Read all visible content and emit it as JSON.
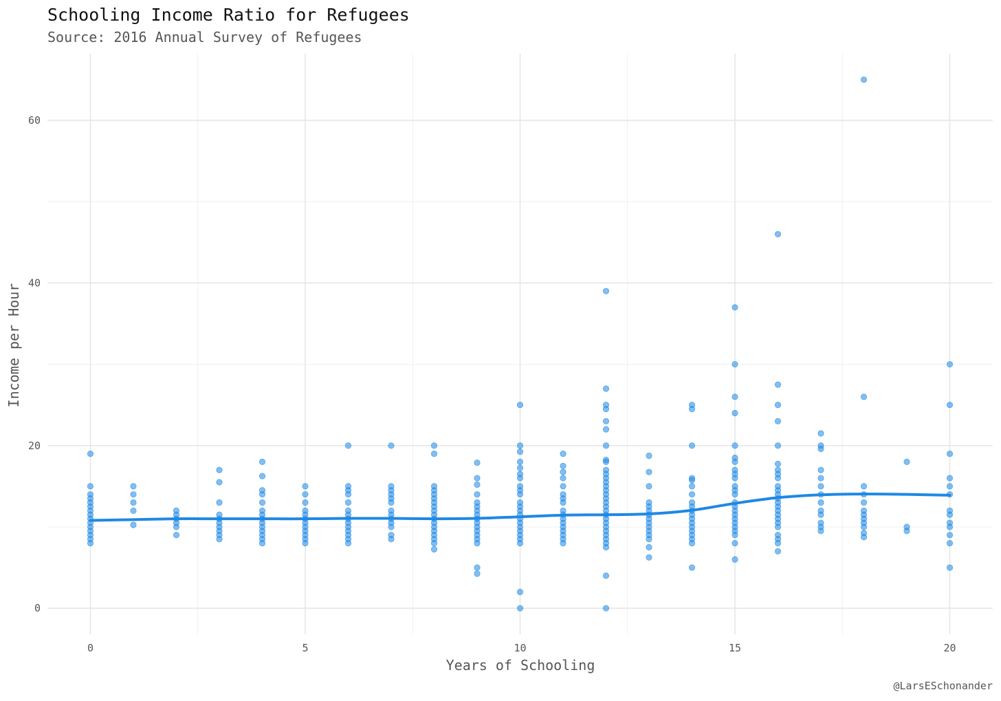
{
  "chart_data": {
    "type": "scatter",
    "title": "Schooling Income Ratio for Refugees",
    "subtitle": "Source: 2016 Annual Survey of Refugees",
    "xlabel": "Years of Schooling",
    "ylabel": "Income per Hour",
    "caption": "@LarsESchonander",
    "xlim": [
      -1,
      21
    ],
    "ylim": [
      -3.2,
      68.2
    ],
    "x_ticks": [
      0,
      5,
      10,
      15,
      20
    ],
    "y_ticks": [
      0,
      20,
      40,
      60
    ],
    "grid": true,
    "point_color": "#1E88E5",
    "line_color": "#1E88E5",
    "series": [
      {
        "type": "scatter",
        "points": [
          [
            0,
            19
          ],
          [
            0,
            15
          ],
          [
            0,
            14
          ],
          [
            0,
            13.5
          ],
          [
            0,
            13
          ],
          [
            0,
            12.5
          ],
          [
            0,
            12
          ],
          [
            0,
            11.5
          ],
          [
            0,
            11
          ],
          [
            0,
            10.5
          ],
          [
            0,
            10
          ],
          [
            0,
            9.5
          ],
          [
            0,
            9
          ],
          [
            0,
            8.5
          ],
          [
            0,
            8
          ],
          [
            1,
            15
          ],
          [
            1,
            14
          ],
          [
            1,
            13
          ],
          [
            1,
            12
          ],
          [
            1,
            10.25
          ],
          [
            2,
            12
          ],
          [
            2,
            11.5
          ],
          [
            2,
            11
          ],
          [
            2,
            10.5
          ],
          [
            2,
            10
          ],
          [
            2,
            9
          ],
          [
            3,
            17
          ],
          [
            3,
            15.5
          ],
          [
            3,
            13
          ],
          [
            3,
            11.5
          ],
          [
            3,
            11
          ],
          [
            3,
            10.5
          ],
          [
            3,
            10
          ],
          [
            3,
            9.5
          ],
          [
            3,
            9
          ],
          [
            3,
            8.5
          ],
          [
            4,
            18
          ],
          [
            4,
            16.25
          ],
          [
            4,
            14.5
          ],
          [
            4,
            14
          ],
          [
            4,
            13
          ],
          [
            4,
            12
          ],
          [
            4,
            11.5
          ],
          [
            4,
            11
          ],
          [
            4,
            10.5
          ],
          [
            4,
            10
          ],
          [
            4,
            9.5
          ],
          [
            4,
            9
          ],
          [
            4,
            8.5
          ],
          [
            4,
            8
          ],
          [
            5,
            15
          ],
          [
            5,
            14
          ],
          [
            5,
            13
          ],
          [
            5,
            12
          ],
          [
            5,
            11.5
          ],
          [
            5,
            11
          ],
          [
            5,
            10.5
          ],
          [
            5,
            10
          ],
          [
            5,
            9.5
          ],
          [
            5,
            9
          ],
          [
            5,
            8.5
          ],
          [
            5,
            8
          ],
          [
            6,
            20
          ],
          [
            6,
            15
          ],
          [
            6,
            14.5
          ],
          [
            6,
            14
          ],
          [
            6,
            13
          ],
          [
            6,
            12
          ],
          [
            6,
            11.5
          ],
          [
            6,
            11
          ],
          [
            6,
            10.5
          ],
          [
            6,
            10
          ],
          [
            6,
            9.5
          ],
          [
            6,
            9
          ],
          [
            6,
            8.5
          ],
          [
            6,
            8
          ],
          [
            7,
            20
          ],
          [
            7,
            15
          ],
          [
            7,
            14.5
          ],
          [
            7,
            14
          ],
          [
            7,
            13.5
          ],
          [
            7,
            13
          ],
          [
            7,
            12
          ],
          [
            7,
            11.5
          ],
          [
            7,
            11
          ],
          [
            7,
            10.5
          ],
          [
            7,
            10
          ],
          [
            7,
            9
          ],
          [
            7,
            8.5
          ],
          [
            8,
            20
          ],
          [
            8,
            19
          ],
          [
            8,
            15
          ],
          [
            8,
            14.5
          ],
          [
            8,
            14
          ],
          [
            8,
            13.5
          ],
          [
            8,
            13
          ],
          [
            8,
            12.5
          ],
          [
            8,
            12
          ],
          [
            8,
            11.5
          ],
          [
            8,
            11
          ],
          [
            8,
            10.5
          ],
          [
            8,
            10
          ],
          [
            8,
            9.5
          ],
          [
            8,
            9
          ],
          [
            8,
            8.5
          ],
          [
            8,
            8
          ],
          [
            8,
            7.25
          ],
          [
            9,
            17.9
          ],
          [
            9,
            16
          ],
          [
            9,
            15.2
          ],
          [
            9,
            14
          ],
          [
            9,
            13
          ],
          [
            9,
            12.5
          ],
          [
            9,
            12
          ],
          [
            9,
            11.5
          ],
          [
            9,
            11
          ],
          [
            9,
            10.5
          ],
          [
            9,
            10
          ],
          [
            9,
            9.5
          ],
          [
            9,
            9
          ],
          [
            9,
            8.5
          ],
          [
            9,
            8
          ],
          [
            9,
            5
          ],
          [
            9,
            4.25
          ],
          [
            10,
            25
          ],
          [
            10,
            20
          ],
          [
            10,
            19.25
          ],
          [
            10,
            18
          ],
          [
            10,
            17.25
          ],
          [
            10,
            16.5
          ],
          [
            10,
            16
          ],
          [
            10,
            15
          ],
          [
            10,
            14.5
          ],
          [
            10,
            14
          ],
          [
            10,
            13
          ],
          [
            10,
            12.5
          ],
          [
            10,
            12
          ],
          [
            10,
            11.5
          ],
          [
            10,
            11
          ],
          [
            10,
            10.5
          ],
          [
            10,
            10
          ],
          [
            10,
            9.5
          ],
          [
            10,
            9
          ],
          [
            10,
            8.5
          ],
          [
            10,
            8
          ],
          [
            10,
            2
          ],
          [
            10,
            0
          ],
          [
            11,
            19
          ],
          [
            11,
            17.5
          ],
          [
            11,
            16.75
          ],
          [
            11,
            16
          ],
          [
            11,
            15
          ],
          [
            11,
            14
          ],
          [
            11,
            13.5
          ],
          [
            11,
            13
          ],
          [
            11,
            12
          ],
          [
            11,
            11.5
          ],
          [
            11,
            11
          ],
          [
            11,
            10.5
          ],
          [
            11,
            10
          ],
          [
            11,
            9.5
          ],
          [
            11,
            9
          ],
          [
            11,
            8.5
          ],
          [
            11,
            8
          ],
          [
            12,
            39
          ],
          [
            12,
            27
          ],
          [
            12,
            25
          ],
          [
            12,
            24.5
          ],
          [
            12,
            23
          ],
          [
            12,
            22
          ],
          [
            12,
            20
          ],
          [
            12,
            18.25
          ],
          [
            12,
            18
          ],
          [
            12,
            17
          ],
          [
            12,
            16.5
          ],
          [
            12,
            16
          ],
          [
            12,
            15.5
          ],
          [
            12,
            15
          ],
          [
            12,
            14.5
          ],
          [
            12,
            14
          ],
          [
            12,
            13.5
          ],
          [
            12,
            13
          ],
          [
            12,
            12.5
          ],
          [
            12,
            12
          ],
          [
            12,
            11.5
          ],
          [
            12,
            11
          ],
          [
            12,
            10.5
          ],
          [
            12,
            10
          ],
          [
            12,
            9.5
          ],
          [
            12,
            9
          ],
          [
            12,
            8.5
          ],
          [
            12,
            8
          ],
          [
            12,
            7.5
          ],
          [
            12,
            4
          ],
          [
            12,
            0
          ],
          [
            13,
            18.75
          ],
          [
            13,
            16.75
          ],
          [
            13,
            15
          ],
          [
            13,
            13
          ],
          [
            13,
            12.5
          ],
          [
            13,
            12
          ],
          [
            13,
            11.5
          ],
          [
            13,
            11
          ],
          [
            13,
            10.5
          ],
          [
            13,
            10
          ],
          [
            13,
            9.5
          ],
          [
            13,
            9
          ],
          [
            13,
            8.5
          ],
          [
            13,
            7.5
          ],
          [
            13,
            6.25
          ],
          [
            14,
            25
          ],
          [
            14,
            24.5
          ],
          [
            14,
            20
          ],
          [
            14,
            16
          ],
          [
            14,
            15.75
          ],
          [
            14,
            15
          ],
          [
            14,
            14
          ],
          [
            14,
            13
          ],
          [
            14,
            12.5
          ],
          [
            14,
            12
          ],
          [
            14,
            11.5
          ],
          [
            14,
            11
          ],
          [
            14,
            10.5
          ],
          [
            14,
            10
          ],
          [
            14,
            9.5
          ],
          [
            14,
            9
          ],
          [
            14,
            8.5
          ],
          [
            14,
            8
          ],
          [
            14,
            5
          ],
          [
            15,
            37
          ],
          [
            15,
            30
          ],
          [
            15,
            26
          ],
          [
            15,
            24
          ],
          [
            15,
            20
          ],
          [
            15,
            18.5
          ],
          [
            15,
            18
          ],
          [
            15,
            17
          ],
          [
            15,
            16.5
          ],
          [
            15,
            16
          ],
          [
            15,
            15
          ],
          [
            15,
            14.5
          ],
          [
            15,
            14
          ],
          [
            15,
            13
          ],
          [
            15,
            12.5
          ],
          [
            15,
            12
          ],
          [
            15,
            11.5
          ],
          [
            15,
            11
          ],
          [
            15,
            10.5
          ],
          [
            15,
            10
          ],
          [
            15,
            9.5
          ],
          [
            15,
            9
          ],
          [
            15,
            8
          ],
          [
            15,
            6
          ],
          [
            16,
            46
          ],
          [
            16,
            27.5
          ],
          [
            16,
            25
          ],
          [
            16,
            23
          ],
          [
            16,
            20
          ],
          [
            16,
            17.75
          ],
          [
            16,
            17
          ],
          [
            16,
            16.5
          ],
          [
            16,
            16
          ],
          [
            16,
            15
          ],
          [
            16,
            14.5
          ],
          [
            16,
            14
          ],
          [
            16,
            13.5
          ],
          [
            16,
            13
          ],
          [
            16,
            12.5
          ],
          [
            16,
            12
          ],
          [
            16,
            11.5
          ],
          [
            16,
            11
          ],
          [
            16,
            10.5
          ],
          [
            16,
            10
          ],
          [
            16,
            9
          ],
          [
            16,
            8.5
          ],
          [
            16,
            8
          ],
          [
            16,
            7
          ],
          [
            17,
            21.5
          ],
          [
            17,
            20
          ],
          [
            17,
            19.6
          ],
          [
            17,
            17
          ],
          [
            17,
            16
          ],
          [
            17,
            15
          ],
          [
            17,
            14
          ],
          [
            17,
            13
          ],
          [
            17,
            12
          ],
          [
            17,
            11.5
          ],
          [
            17,
            10.5
          ],
          [
            17,
            10
          ],
          [
            17,
            9.5
          ],
          [
            18,
            65
          ],
          [
            18,
            26
          ],
          [
            18,
            15
          ],
          [
            18,
            14
          ],
          [
            18,
            13
          ],
          [
            18,
            12
          ],
          [
            18,
            11.5
          ],
          [
            18,
            11
          ],
          [
            18,
            10.5
          ],
          [
            18,
            10
          ],
          [
            18,
            9.25
          ],
          [
            18,
            8.75
          ],
          [
            19,
            18
          ],
          [
            19,
            10
          ],
          [
            19,
            9.5
          ],
          [
            20,
            30
          ],
          [
            20,
            25
          ],
          [
            20,
            19
          ],
          [
            20,
            16
          ],
          [
            20,
            15
          ],
          [
            20,
            14
          ],
          [
            20,
            12
          ],
          [
            20,
            11.5
          ],
          [
            20,
            10.5
          ],
          [
            20,
            10
          ],
          [
            20,
            9
          ],
          [
            20,
            8
          ],
          [
            20,
            5
          ]
        ]
      },
      {
        "type": "line",
        "points": [
          [
            0,
            10.8
          ],
          [
            1,
            10.9
          ],
          [
            2,
            11.0
          ],
          [
            3,
            11.0
          ],
          [
            4,
            11.0
          ],
          [
            5,
            11.0
          ],
          [
            6,
            11.05
          ],
          [
            7,
            11.05
          ],
          [
            8,
            11.0
          ],
          [
            9,
            11.05
          ],
          [
            10,
            11.25
          ],
          [
            11,
            11.45
          ],
          [
            12,
            11.5
          ],
          [
            13,
            11.6
          ],
          [
            14,
            12.05
          ],
          [
            15,
            12.9
          ],
          [
            16,
            13.6
          ],
          [
            17,
            13.95
          ],
          [
            18,
            14.05
          ],
          [
            19,
            14.0
          ],
          [
            20,
            13.9
          ]
        ]
      }
    ]
  }
}
